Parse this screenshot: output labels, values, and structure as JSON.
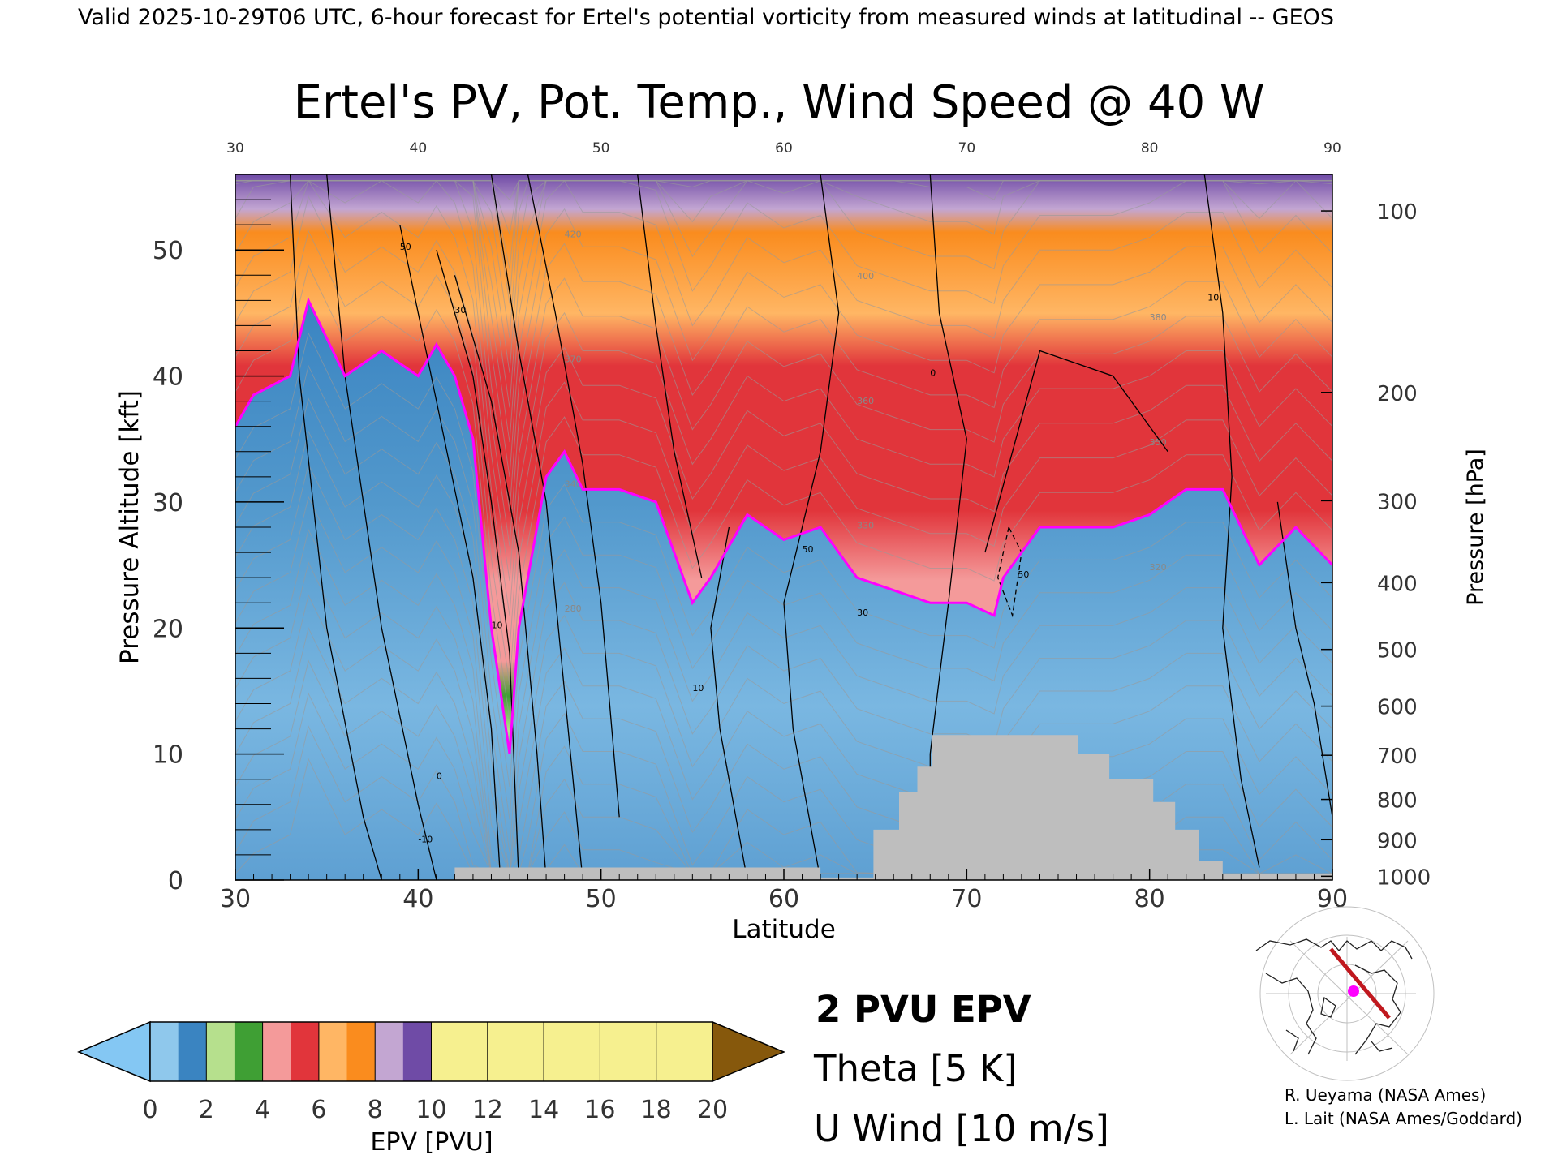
{
  "header": {
    "valid_line": "Valid 2025-10-29T06 UTC, 6-hour forecast for Ertel's potential vorticity from measured winds at latitudinal -- GEOS",
    "plot_title": "Ertel's PV, Pot. Temp., Wind Speed @ 40 W"
  },
  "chart_data": {
    "type": "heatmap",
    "title": "Ertel's PV, Pot. Temp., Wind Speed @ 40 W",
    "xlabel": "Latitude",
    "ylabel": "Pressure Altitude [kft]",
    "y2label": "Pressure [hPa]",
    "xlim": [
      30,
      90
    ],
    "ylim": [
      0,
      56
    ],
    "x_ticks": [
      "30",
      "40",
      "50",
      "60",
      "70",
      "80",
      "90"
    ],
    "y_ticks": [
      "0",
      "10",
      "20",
      "30",
      "40",
      "50"
    ],
    "pressure_ticks": [
      {
        "label": "100",
        "kft": 53.1
      },
      {
        "label": "200",
        "kft": 38.7
      },
      {
        "label": "300",
        "kft": 30.1
      },
      {
        "label": "400",
        "kft": 23.6
      },
      {
        "label": "500",
        "kft": 18.3
      },
      {
        "label": "600",
        "kft": 13.8
      },
      {
        "label": "700",
        "kft": 9.9
      },
      {
        "label": "800",
        "kft": 6.4
      },
      {
        "label": "900",
        "kft": 3.2
      },
      {
        "label": "1000",
        "kft": 0.3
      }
    ],
    "series": [
      {
        "name": "2 PVU EPV",
        "x": [
          30,
          31,
          33,
          34,
          36,
          38,
          40,
          41,
          42,
          43,
          44,
          45,
          45.5,
          46,
          47,
          48,
          49,
          51,
          53,
          55,
          56,
          58,
          60,
          62,
          64,
          66,
          68,
          70,
          71.5,
          72,
          74,
          76,
          78,
          80,
          82,
          84,
          86,
          88,
          90
        ],
        "y": [
          36,
          38.5,
          40,
          46,
          40,
          42,
          40,
          42.5,
          40,
          35,
          20,
          10,
          20,
          24,
          32,
          34,
          31,
          31,
          30,
          22,
          24,
          29,
          27,
          28,
          24,
          23,
          22,
          22,
          21,
          24,
          28,
          28,
          28,
          29,
          31,
          31,
          25,
          28,
          25
        ]
      }
    ],
    "epv_colorbar": {
      "label": "EPV [PVU]",
      "tick_labels": [
        "0",
        "2",
        "4",
        "6",
        "8",
        "10",
        "12",
        "14",
        "16",
        "18",
        "20"
      ],
      "colors": [
        "#8fc8ec",
        "#3a84c1",
        "#b6e08d",
        "#3f9f34",
        "#f49a9a",
        "#e1353b",
        "#ffb664",
        "#fa8c1e",
        "#c3a6d2",
        "#6f4ba6",
        "#f6f08f"
      ],
      "under_color": "#84c7f3",
      "over_color": "#86580c"
    },
    "theta_labels": [
      "420",
      "400",
      "380",
      "370",
      "360",
      "350",
      "340",
      "330",
      "320",
      "280"
    ],
    "u_wind_labels": [
      "50",
      "30",
      "10",
      "0",
      "-10"
    ],
    "terrain_color": "#bebebe",
    "pv_contour_color": "#ff00ff"
  },
  "legend": {
    "epv": "2 PVU EPV",
    "theta": "Theta [5 K]",
    "wind": "U Wind [10 m/s]",
    "epv_color": "#ff00ff",
    "theta_color": "#bebebe",
    "wind_color": "#000000"
  },
  "credits": {
    "line1": "R. Ueyama (NASA Ames)",
    "line2": "L. Lait (NASA Ames/Goddard)"
  },
  "inset_map": {
    "path_color": "#c0181e",
    "marker_color": "#ff00ff"
  }
}
